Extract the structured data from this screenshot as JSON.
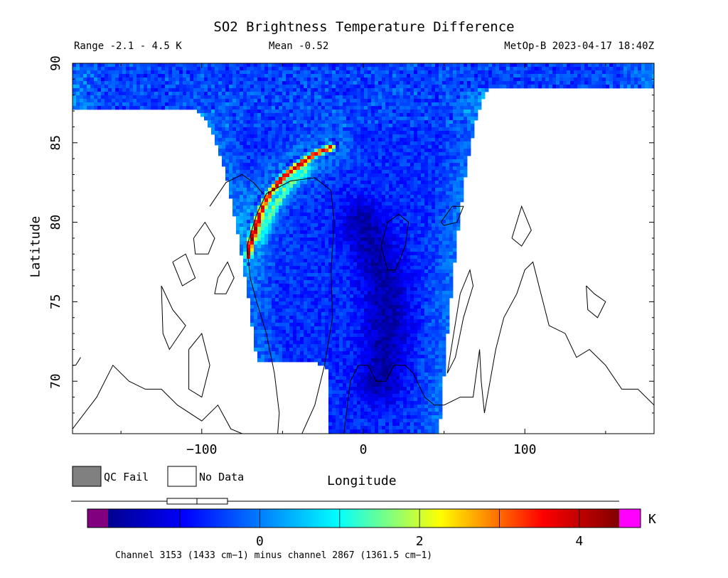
{
  "chart_data": {
    "type": "heatmap",
    "title": "SO2 Brightness Temperature Difference",
    "subtitle_left": "Range -2.1 - 4.5 K",
    "subtitle_center": "Mean -0.52",
    "subtitle_right": "MetOp-B 2023-04-17 18:40Z",
    "xlabel": "Longitude",
    "ylabel": "Latitude",
    "xlim": [
      -180,
      180
    ],
    "ylim": [
      66.7,
      90
    ],
    "x_ticks": [
      -100,
      0,
      100
    ],
    "x_tick_labels": [
      "−100",
      "0",
      "100"
    ],
    "y_ticks": [
      70,
      75,
      80,
      85,
      90
    ],
    "y_tick_labels": [
      "70",
      "75",
      "80",
      "85",
      "90"
    ],
    "colorbar": {
      "range": [
        -1.9,
        4.5
      ],
      "ticks": [
        0,
        2,
        4
      ],
      "tick_labels": [
        "0",
        "2",
        "4"
      ],
      "unit": "K",
      "under_color": "#800080",
      "over_color": "#ff00ff",
      "colormap": [
        "#00008f",
        "#0000ff",
        "#00ffff",
        "#ffff00",
        "#ff0000",
        "#800000"
      ]
    },
    "legend": [
      {
        "label": "QC Fail",
        "color": "#808080"
      },
      {
        "label": "No Data",
        "color": "#ffffff"
      }
    ],
    "footnote": "Channel 3153 (1433 cm−1) minus channel 2867 (1361.5 cm−1)",
    "features": [
      {
        "name": "SO2 plume",
        "points": [
          [
            -20,
            84.7
          ],
          [
            -30,
            84.3
          ],
          [
            -40,
            83.6
          ],
          [
            -50,
            82.8
          ],
          [
            -58,
            81.8
          ],
          [
            -63,
            80.8
          ],
          [
            -67,
            79.6
          ],
          [
            -70,
            78.7
          ],
          [
            -71,
            77.9
          ]
        ],
        "value": 4.3
      },
      {
        "name": "plume secondary",
        "points": [
          [
            -35,
            83.4
          ],
          [
            -48,
            82.2
          ],
          [
            -58,
            80.5
          ],
          [
            -65,
            79.0
          ]
        ],
        "value": 1.5
      },
      {
        "name": "negative arc",
        "points": [
          [
            0,
            80
          ],
          [
            8,
            78
          ],
          [
            14,
            76
          ],
          [
            15,
            74
          ],
          [
            13,
            72
          ],
          [
            10,
            70
          ]
        ],
        "value": -1.6
      }
    ]
  }
}
